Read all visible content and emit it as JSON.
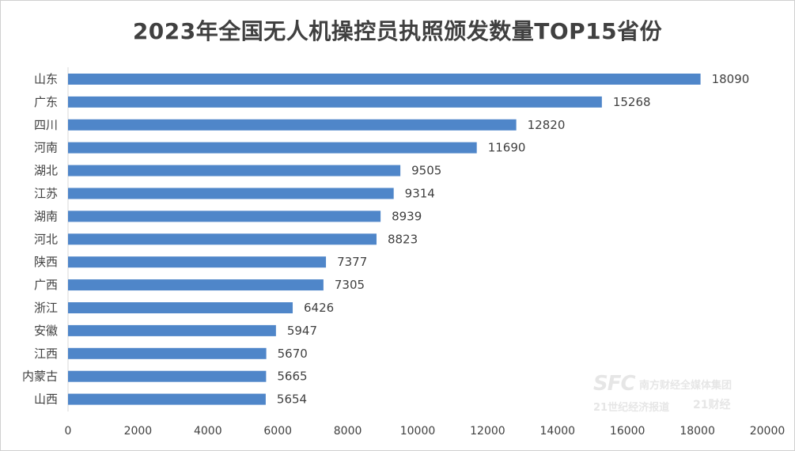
{
  "chart_data": {
    "type": "bar",
    "orientation": "horizontal",
    "title": "2023年全国无人机操控员执照颁发数量TOP15省份",
    "categories": [
      "山东",
      "广东",
      "四川",
      "河南",
      "湖北",
      "江苏",
      "湖南",
      "河北",
      "陕西",
      "广西",
      "浙江",
      "安徽",
      "江西",
      "内蒙古",
      "山西"
    ],
    "values": [
      18090,
      15268,
      12820,
      11690,
      9505,
      9314,
      8939,
      8823,
      7377,
      7305,
      6426,
      5947,
      5670,
      5665,
      5654
    ],
    "xlim": [
      0,
      20000
    ],
    "xticks": [
      0,
      2000,
      4000,
      6000,
      8000,
      10000,
      12000,
      14000,
      16000,
      18000,
      20000
    ],
    "xlabel": "",
    "ylabel": "",
    "grid": false,
    "bar_color": "#4f86c9"
  },
  "watermark": {
    "logo_text": "SFC",
    "org_text": "南方财经全媒体集团",
    "line2_text": "21世纪经济报道",
    "badge_text": "21财经"
  }
}
